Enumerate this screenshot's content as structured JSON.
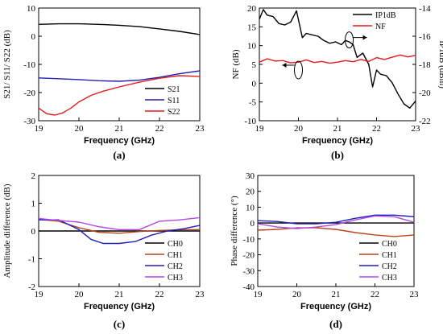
{
  "chart_data": [
    {
      "panel": "(a)",
      "type": "line",
      "xlabel": "Frequency (GHz)",
      "ylabel": "S21/ S11/ S22 (dB)",
      "xlim": [
        19,
        23
      ],
      "ylim": [
        -30,
        10
      ],
      "xticks": [
        "19",
        "20",
        "21",
        "22",
        "23"
      ],
      "yticks": [
        "10",
        "0",
        "-10",
        "-20",
        "-30"
      ],
      "legend_position": "bottom-right",
      "series": [
        {
          "name": "S21",
          "color": "#000000",
          "axis": "left",
          "x": [
            19,
            19.5,
            20,
            20.5,
            21,
            21.5,
            22,
            22.5,
            23
          ],
          "y": [
            4.2,
            4.4,
            4.4,
            4.2,
            3.9,
            3.4,
            2.6,
            1.7,
            0.6
          ]
        },
        {
          "name": "S11",
          "color": "#1f1fb4",
          "axis": "left",
          "x": [
            19,
            19.5,
            20,
            20.5,
            21,
            21.5,
            22,
            22.5,
            23
          ],
          "y": [
            -14.8,
            -15.1,
            -15.4,
            -15.8,
            -16.0,
            -15.6,
            -14.6,
            -13.3,
            -12.3
          ]
        },
        {
          "name": "S22",
          "color": "#e41a1c",
          "axis": "left",
          "x": [
            19,
            19.2,
            19.4,
            19.6,
            19.8,
            20,
            20.3,
            20.6,
            21,
            21.5,
            22,
            22.5,
            23
          ],
          "y": [
            -25.5,
            -27.5,
            -28,
            -27.2,
            -25.5,
            -23.3,
            -21,
            -19.5,
            -18,
            -16.3,
            -14.9,
            -14,
            -14.3
          ]
        }
      ]
    },
    {
      "panel": "(b)",
      "type": "line",
      "xlabel": "Frequency (GHz)",
      "ylabel": "NF (dB)",
      "y2label": "IP1dB (dBm)",
      "xlim": [
        19,
        23
      ],
      "ylim": [
        -10,
        20
      ],
      "y2lim": [
        -22,
        -14
      ],
      "xticks": [
        "19",
        "20",
        "21",
        "22",
        "23"
      ],
      "yticks": [
        "20",
        "15",
        "10",
        "5",
        "0",
        "-5",
        "-10"
      ],
      "y2ticks": [
        "-14",
        "-16",
        "-18",
        "-20",
        "-22"
      ],
      "legend_position": "top-right",
      "series": [
        {
          "name": "IP1dB",
          "color": "#000000",
          "axis": "right",
          "x": [
            19,
            19.1,
            19.2,
            19.35,
            19.5,
            19.65,
            19.8,
            19.95,
            20.1,
            20.2,
            20.35,
            20.5,
            20.65,
            20.8,
            20.95,
            21.1,
            21.2,
            21.3,
            21.4,
            21.5,
            21.65,
            21.8,
            21.9,
            22.0,
            22.1,
            22.25,
            22.4,
            22.55,
            22.7,
            22.85,
            23
          ],
          "y": [
            -14.8,
            -14.1,
            -14.5,
            -14.6,
            -15.1,
            -15.2,
            -15.0,
            -14.2,
            -16.1,
            -15.8,
            -15.9,
            -16.0,
            -16.3,
            -16.5,
            -16.4,
            -16.6,
            -16.3,
            -16.4,
            -16.6,
            -17.5,
            -17.2,
            -18.0,
            -19.6,
            -18.4,
            -18.7,
            -18.8,
            -19.3,
            -20.1,
            -20.8,
            -21.1,
            -20.6
          ]
        },
        {
          "name": "NF",
          "color": "#e41a1c",
          "axis": "left",
          "x": [
            19,
            19.2,
            19.4,
            19.6,
            19.8,
            20,
            20.2,
            20.4,
            20.6,
            20.8,
            21,
            21.2,
            21.4,
            21.6,
            21.8,
            22,
            22.2,
            22.4,
            22.6,
            22.8,
            23
          ],
          "y": [
            5.6,
            6.5,
            5.9,
            6.0,
            5.4,
            5.6,
            6.2,
            5.5,
            5.8,
            5.3,
            5.6,
            6.0,
            5.7,
            6.3,
            5.8,
            6.8,
            6.3,
            6.9,
            7.5,
            7.0,
            7.4
          ]
        }
      ]
    },
    {
      "panel": "(c)",
      "type": "line",
      "xlabel": "Frequency  (GHz)",
      "ylabel": "Amplitude difference (dB)",
      "xlim": [
        19,
        23
      ],
      "ylim": [
        -2,
        2
      ],
      "xticks": [
        "19",
        "20",
        "21",
        "22",
        "23"
      ],
      "yticks": [
        "2",
        "1",
        "0",
        "-1",
        "-2"
      ],
      "legend_position": "bottom-right",
      "series": [
        {
          "name": "CH0",
          "color": "#000000",
          "axis": "left",
          "x": [
            19,
            23
          ],
          "y": [
            0,
            0
          ]
        },
        {
          "name": "CH1",
          "color": "#b5461c",
          "axis": "left",
          "x": [
            19,
            19.5,
            20,
            20.5,
            21,
            21.5,
            22,
            22.5,
            23
          ],
          "y": [
            0.42,
            0.35,
            0.12,
            -0.05,
            -0.08,
            -0.02,
            0.02,
            0.04,
            0.05
          ]
        },
        {
          "name": "CH2",
          "color": "#1f1fb4",
          "axis": "left",
          "x": [
            19,
            19.5,
            20,
            20.3,
            20.6,
            21,
            21.4,
            21.8,
            22.2,
            22.6,
            23
          ],
          "y": [
            0.4,
            0.4,
            0.05,
            -0.3,
            -0.45,
            -0.45,
            -0.38,
            -0.15,
            0.0,
            0.08,
            0.2
          ]
        },
        {
          "name": "CH3",
          "color": "#b048e8",
          "axis": "left",
          "x": [
            19,
            19.5,
            20,
            20.5,
            21,
            21.5,
            22,
            22.5,
            23
          ],
          "y": [
            0.45,
            0.38,
            0.32,
            0.15,
            0.05,
            0.05,
            0.35,
            0.4,
            0.48
          ]
        }
      ]
    },
    {
      "panel": "(d)",
      "type": "line",
      "xlabel": "Frequency  (GHz)",
      "ylabel": "Phase difference (°)",
      "xlim": [
        19,
        23
      ],
      "ylim": [
        -40,
        30
      ],
      "xticks": [
        "19",
        "20",
        "21",
        "22",
        "23"
      ],
      "yticks": [
        "30",
        "20",
        "10",
        "0",
        "-10",
        "-20",
        "-30",
        "-40"
      ],
      "legend_position": "bottom-right",
      "series": [
        {
          "name": "CH0",
          "color": "#000000",
          "axis": "left",
          "x": [
            19,
            23
          ],
          "y": [
            0,
            0
          ]
        },
        {
          "name": "CH1",
          "color": "#b5461c",
          "axis": "left",
          "x": [
            19,
            19.5,
            20,
            20.5,
            21,
            21.5,
            22,
            22.5,
            23
          ],
          "y": [
            -4.5,
            -4.0,
            -3.0,
            -3.0,
            -4.0,
            -6.0,
            -7.5,
            -8.5,
            -7.5
          ]
        },
        {
          "name": "CH2",
          "color": "#1f1fb4",
          "axis": "left",
          "x": [
            19,
            19.5,
            20,
            20.5,
            21,
            21.5,
            22,
            22.5,
            23
          ],
          "y": [
            1.5,
            1.0,
            -0.5,
            -0.5,
            0.5,
            3.0,
            5.0,
            5.0,
            4.0
          ]
        },
        {
          "name": "CH3",
          "color": "#b048e8",
          "axis": "left",
          "x": [
            19,
            19.5,
            20,
            20.5,
            21,
            21.5,
            22,
            22.5,
            23
          ],
          "y": [
            -0.5,
            -2.5,
            -3.5,
            -2.5,
            -1.0,
            2.0,
            4.5,
            4.0,
            0.5
          ]
        }
      ]
    }
  ]
}
